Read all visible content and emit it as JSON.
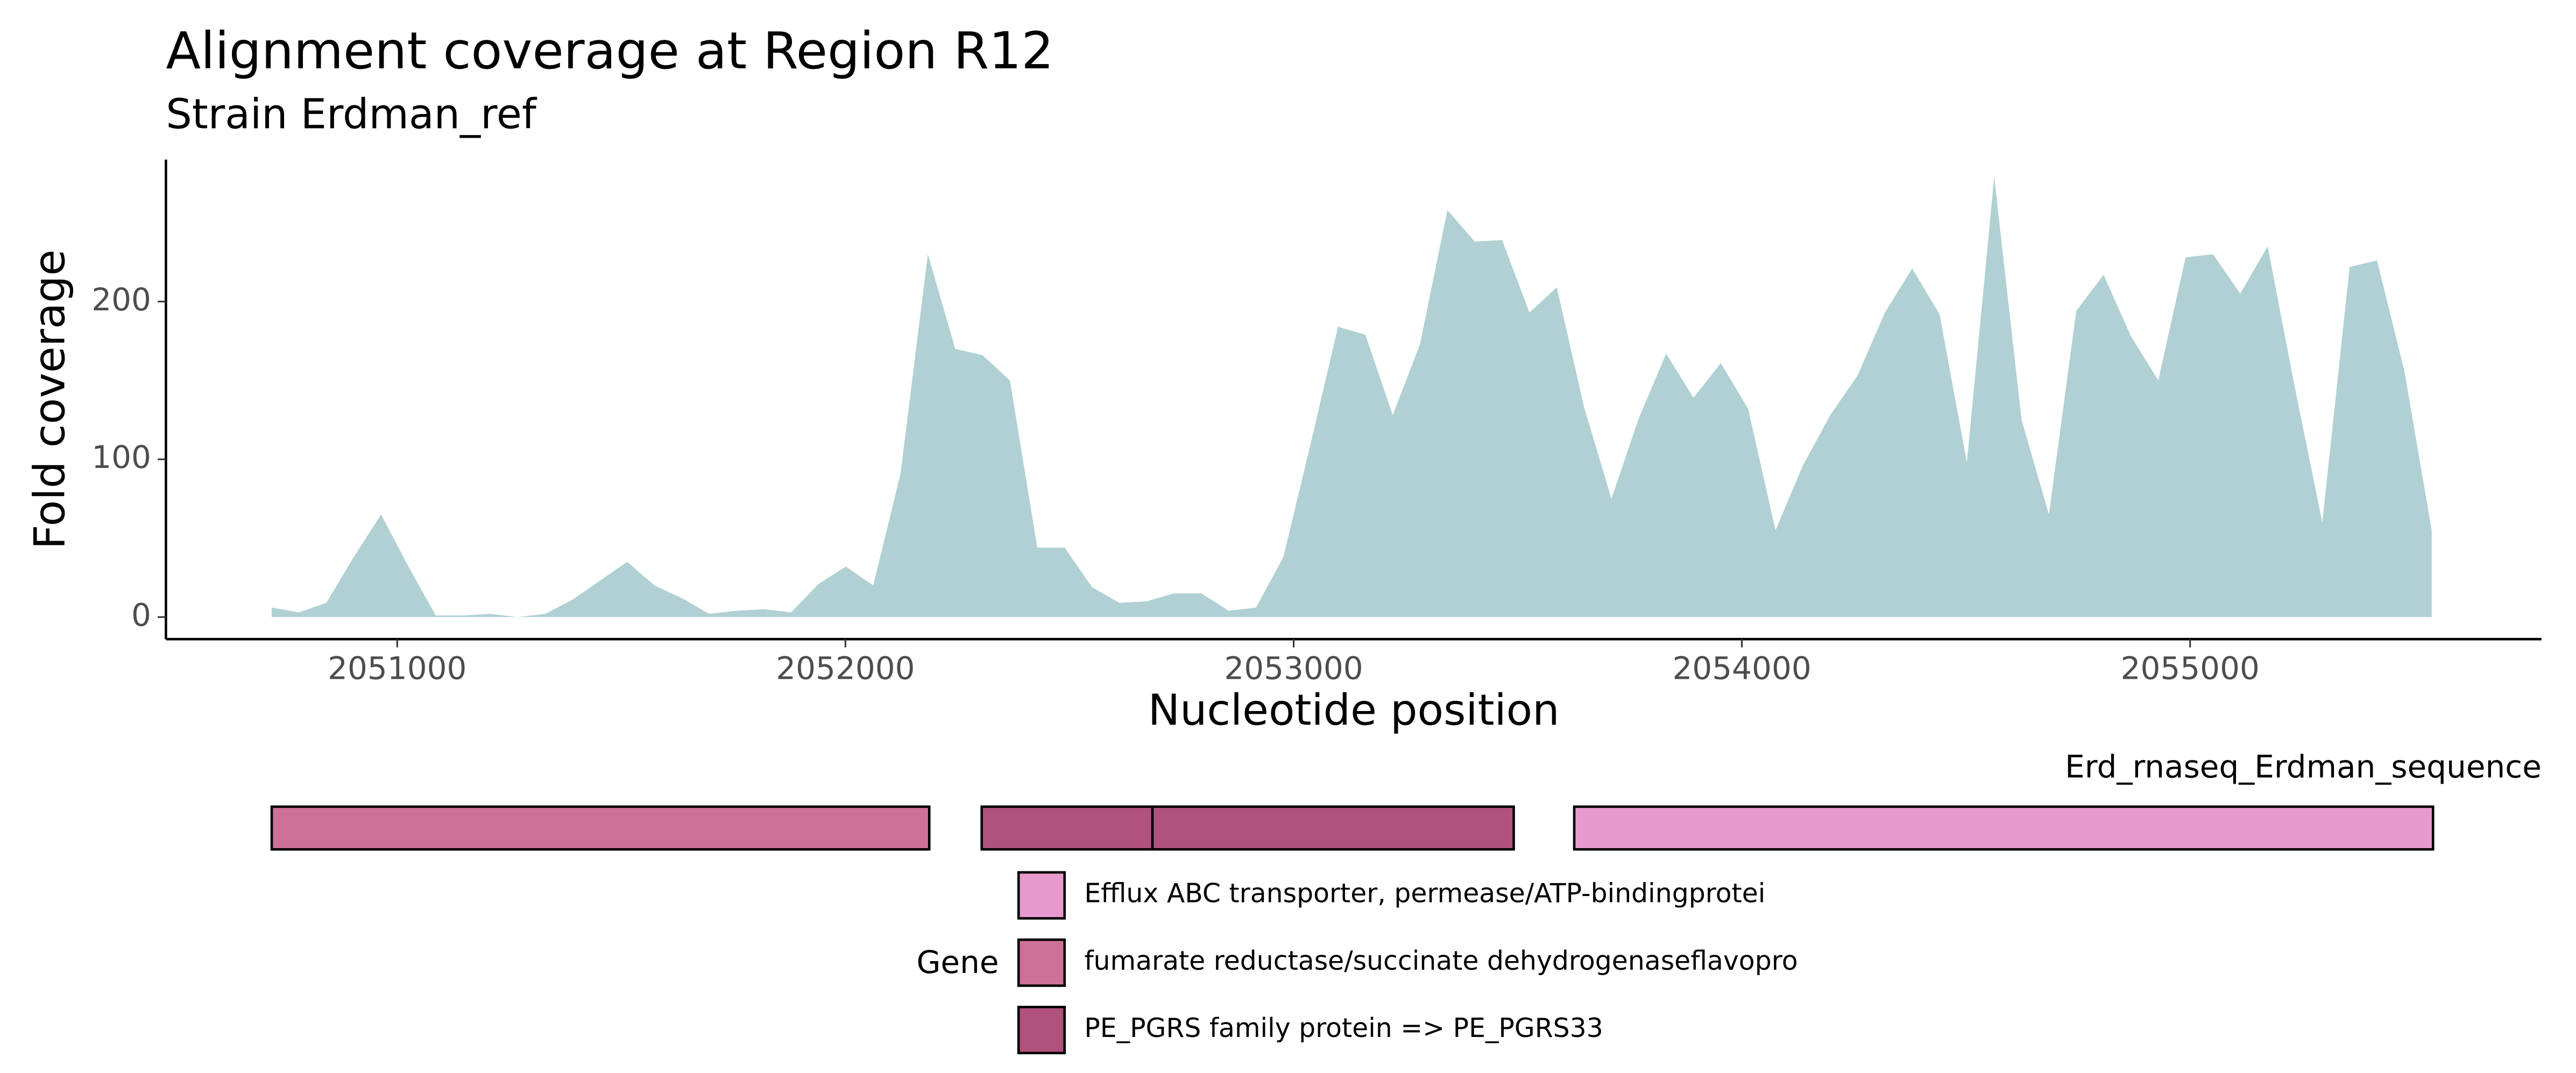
{
  "chart_data": {
    "type": "area",
    "title": "Alignment coverage at Region R12",
    "subtitle": "Strain Erdman_ref",
    "x_label": "Nucleotide position",
    "y_label": "Fold coverage",
    "xlim": [
      2050484,
      2055784
    ],
    "ylim": [
      -14,
      290
    ],
    "xticks": [
      2051000,
      2052000,
      2053000,
      2054000,
      2055000
    ],
    "yticks": [
      0,
      100,
      200
    ],
    "grid": false,
    "x": [
      2050720,
      2050781,
      2050842,
      2050903,
      2050964,
      2051025,
      2051086,
      2051147,
      2051208,
      2051269,
      2051330,
      2051391,
      2051452,
      2051513,
      2051574,
      2051635,
      2051696,
      2051757,
      2051818,
      2051879,
      2051940,
      2052001,
      2052062,
      2052123,
      2052184,
      2052245,
      2052306,
      2052367,
      2052428,
      2052489,
      2052550,
      2052611,
      2052672,
      2052733,
      2052794,
      2052855,
      2052916,
      2052977,
      2053038,
      2053099,
      2053160,
      2053221,
      2053282,
      2053343,
      2053404,
      2053465,
      2053526,
      2053587,
      2053648,
      2053709,
      2053770,
      2053831,
      2053892,
      2053953,
      2054014,
      2054075,
      2054136,
      2054197,
      2054258,
      2054319,
      2054380,
      2054441,
      2054502,
      2054563,
      2054624,
      2054685,
      2054746,
      2054807,
      2054868,
      2054929,
      2054990,
      2055051,
      2055112,
      2055173,
      2055234,
      2055295,
      2055356,
      2055417,
      2055478,
      2055539
    ],
    "series": [
      {
        "name": "Fold coverage",
        "color": "#b0d0d3",
        "values": [
          6,
          3,
          9,
          38,
          65,
          32,
          1,
          1,
          2,
          0,
          2,
          11,
          23,
          35,
          20,
          12,
          2,
          4,
          5,
          3,
          21,
          32,
          20,
          91,
          230,
          170,
          166,
          150,
          44,
          44,
          19,
          9,
          10,
          15,
          15,
          4,
          6,
          38,
          110,
          184,
          179,
          128,
          173,
          258,
          238,
          239,
          193,
          209,
          133,
          75,
          126,
          167,
          139,
          161,
          132,
          55,
          96,
          128,
          153,
          193,
          221,
          192,
          98,
          279,
          125,
          65,
          194,
          217,
          178,
          150,
          228,
          230,
          205,
          235,
          145,
          60,
          222,
          226,
          156,
          55
        ]
      }
    ]
  },
  "gene_track": {
    "label": "Erd_rnaseq_Erdman_sequence",
    "genes": [
      {
        "start": 2050720,
        "end": 2052187,
        "gene": "fumarate reductase/succinate dehydrogenaseflavopro"
      },
      {
        "start": 2052304,
        "end": 2052685,
        "gene": "PE_PGRS family protein => PE_PGRS33"
      },
      {
        "start": 2052685,
        "end": 2053491,
        "gene": "PE_PGRS family protein => PE_PGRS33"
      },
      {
        "start": 2053626,
        "end": 2055542,
        "gene": "Efflux ABC transporter, permease/ATP-bindingprotei"
      }
    ],
    "legend": {
      "title": "Gene",
      "entries": [
        {
          "name": "Efflux ABC transporter, permease/ATP-bindingprotei",
          "color": "#e699cc"
        },
        {
          "name": "fumarate reductase/succinate dehydrogenaseflavopro",
          "color": "#cf7099"
        },
        {
          "name": "PE_PGRS family protein => PE_PGRS33",
          "color": "#b0527d"
        }
      ]
    }
  }
}
